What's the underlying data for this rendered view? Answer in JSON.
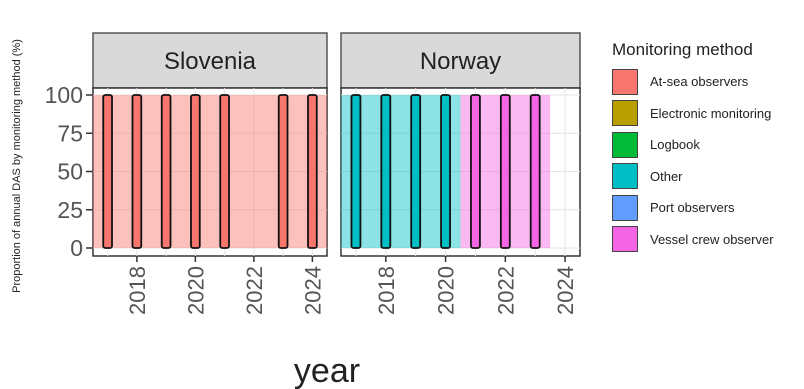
{
  "chart_data": {
    "type": "bar",
    "ylabel": "Proportion of annual DAS by monitoring method (%)",
    "xlabel": "year",
    "ylim": [
      0,
      100
    ],
    "yticks": [
      0,
      25,
      50,
      75,
      100
    ],
    "xlim": [
      2016.5,
      2024.5
    ],
    "xticks": [
      2018,
      2020,
      2022,
      2024
    ],
    "grid": true,
    "legend_position": "right",
    "legend_title": "Monitoring method",
    "methods": [
      {
        "name": "At-sea observers",
        "color": "#F8766D"
      },
      {
        "name": "Electronic monitoring",
        "color": "#B79F00"
      },
      {
        "name": "Logbook",
        "color": "#00BA38"
      },
      {
        "name": "Other",
        "color": "#00BFC4"
      },
      {
        "name": "Port observers",
        "color": "#619CFF"
      },
      {
        "name": "Vessel crew observer",
        "color": "#F564E3"
      }
    ],
    "panels": [
      {
        "title": "Slovenia",
        "bars": [
          {
            "year": 2017,
            "method": "At-sea observers",
            "value": 100
          },
          {
            "year": 2018,
            "method": "At-sea observers",
            "value": 100
          },
          {
            "year": 2019,
            "method": "At-sea observers",
            "value": 100
          },
          {
            "year": 2020,
            "method": "At-sea observers",
            "value": 100
          },
          {
            "year": 2021,
            "method": "At-sea observers",
            "value": 100
          },
          {
            "year": 2023,
            "method": "At-sea observers",
            "value": 100
          },
          {
            "year": 2024,
            "method": "At-sea observers",
            "value": 100
          }
        ]
      },
      {
        "title": "Norway",
        "bars": [
          {
            "year": 2017,
            "method": "Other",
            "value": 100
          },
          {
            "year": 2018,
            "method": "Other",
            "value": 100
          },
          {
            "year": 2019,
            "method": "Other",
            "value": 100
          },
          {
            "year": 2020,
            "method": "Other",
            "value": 100
          },
          {
            "year": 2021,
            "method": "Vessel crew observer",
            "value": 100
          },
          {
            "year": 2022,
            "method": "Vessel crew observer",
            "value": 100
          },
          {
            "year": 2023,
            "method": "Vessel crew observer",
            "value": 100
          }
        ]
      }
    ]
  }
}
